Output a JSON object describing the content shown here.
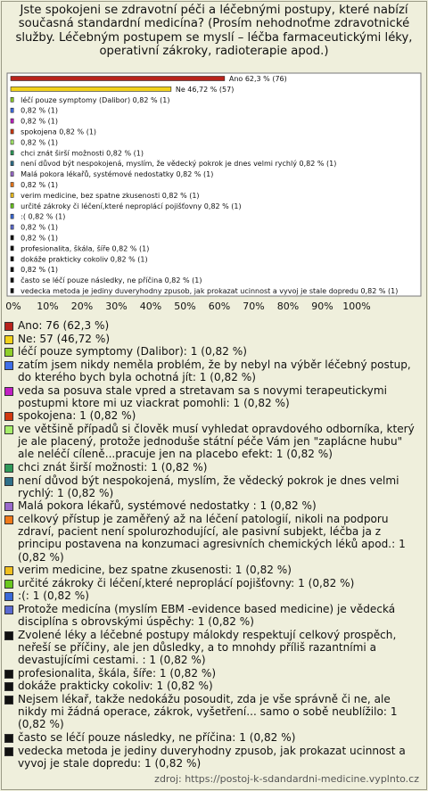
{
  "chart_data": {
    "type": "bar",
    "orientation": "horizontal",
    "title": "Jste spokojeni se zdravotní péči a léčebnými postupy, které nabízí současná standardní medicína? (Prosím nehodnoťme zdravotnické služby. Léčebným postupem se myslí – léčba farmaceutickými léky, operativní zákroky, radioterapie apod.)",
    "values": [
      62.3,
      46.72,
      0.82,
      0.82,
      0.82,
      0.82,
      0.82,
      0.82,
      0.82,
      0.82,
      0.82,
      0.82,
      0.82,
      0.82,
      0.82,
      0.82,
      0.82,
      0.82,
      0.82,
      0.82,
      0.82
    ],
    "value_labels": [
      "Ano 62,3 % (76)",
      "Ne 46,72 % (57)",
      "léčí pouze symptomy (Dalibor) 0,82 % (1)",
      "0,82 % (1)",
      "0,82 % (1)",
      "spokojena 0,82 % (1)",
      "0,82 % (1)",
      "chci znát širší možnosti 0,82 % (1)",
      "není důvod být nespokojená, myslím, že vědecký pokrok je dnes velmi rychlý 0,82 % (1)",
      "Malá pokora lékařů, systémové nedostatky  0,82 % (1)",
      "0,82 % (1)",
      "verim medicine, bez spatne zkusenosti 0,82 % (1)",
      "určité zákroky či léčení,které neproplácí pojišťovny 0,82 % (1)",
      ":( 0,82 % (1)",
      "0,82 % (1)",
      "0,82 % (1)",
      "profesionalita, škála, šíře 0,82 % (1)",
      "dokáže prakticky cokoliv 0,82 % (1)",
      "0,82 % (1)",
      "často se léčí pouze následky, ne příčina 0,82 % (1)",
      "vedecka metoda je jediny duveryhodny zpusob, jak prokazat ucinnost a vyvoj je stale dopredu 0,82 % (1)"
    ],
    "colors": [
      "#b8231c",
      "#f2d21b",
      "#8fcf2a",
      "#3f6fe8",
      "#c11fc4",
      "#d23a10",
      "#a6ee6a",
      "#2f9a5a",
      "#2f6f8a",
      "#9a6acb",
      "#f07a1a",
      "#f0c020",
      "#6ac81e",
      "#3a6ad8",
      "#5a6ad0",
      "#111111",
      "#111111",
      "#111111",
      "#111111",
      "#111111",
      "#111111"
    ],
    "legend_labels": [
      "Ano: 76 (62,3 %)",
      "Ne: 57 (46,72 %)",
      "léčí pouze symptomy (Dalibor): 1 (0,82 %)",
      "zatím jsem nikdy neměla problém, že by nebyl na výběr léčebný postup, do kterého bych byla ochotná jít: 1 (0,82 %)",
      "veda sa posuva stale vpred a stretavam sa s novymi terapeutickymi postupmi ktore mi uz viackrat pomohli: 1 (0,82 %)",
      "spokojena: 1 (0,82 %)",
      "ve většině případů si člověk musí vyhledat opravdového odborníka, který je ale placený, protože jednoduše státní péče Vám jen \"zaplácne hubu\" ale neléčí cíleně...pracuje jen na placebo efekt: 1 (0,82 %)",
      "chci znát širší možnosti: 1 (0,82 %)",
      "není důvod být nespokojená, myslím, že vědecký pokrok je dnes velmi rychlý: 1 (0,82 %)",
      "Malá pokora lékařů, systémové nedostatky : 1 (0,82 %)",
      "celkový přístup je zaměřený až na léčení patologií, nikoli na podporu zdraví, pacient není spolurozhodující, ale pasivní subjekt, léčba ja z principu postavena na konzumaci agresivních chemických léků apod.: 1 (0,82 %)",
      "verim medicine, bez spatne zkusenosti: 1 (0,82 %)",
      "určité zákroky či léčení,které neproplácí pojišťovny: 1 (0,82 %)",
      ":(: 1 (0,82 %)",
      "Protože medicína (myslím EBM -evidence based medicine) je vědecká disciplína s obrovskými úspěchy: 1 (0,82 %)",
      "Zvolené léky a léčebné postupy málokdy respektují celkový prospěch, neřeší se příčiny, ale jen důsledky, a to mnohdy příliš razantními a devastujícími cestami. : 1 (0,82 %)",
      "profesionalita, škála, šíře: 1 (0,82 %)",
      "dokáže prakticky cokoliv: 1 (0,82 %)",
      "Nejsem lékař, takže nedokážu posoudit, zda je vše správně či ne, ale nikdy mi žádná operace, zákrok, vyšetření... samo o sobě neublížilo: 1 (0,82 %)",
      "často se léčí pouze následky, ne příčina: 1 (0,82 %)",
      "vedecka metoda je jediny duveryhodny zpusob, jak prokazat ucinnost a vyvoj je stale dopredu: 1 (0,82 %)"
    ],
    "xlim": [
      0,
      120
    ],
    "xticks": [
      {
        "value": 0,
        "label": "0%"
      },
      {
        "value": 10,
        "label": "10%"
      },
      {
        "value": 20,
        "label": "20%"
      },
      {
        "value": 30,
        "label": "30%"
      },
      {
        "value": 40,
        "label": "40%"
      },
      {
        "value": 50,
        "label": "50%"
      },
      {
        "value": 60,
        "label": "60%"
      },
      {
        "value": 70,
        "label": "70%"
      },
      {
        "value": 80,
        "label": "80%"
      },
      {
        "value": 90,
        "label": "90%"
      },
      {
        "value": 100,
        "label": "100%"
      }
    ],
    "grid": false,
    "source": "zdroj: https://postoj-k-sdandardni-medicine.vyplnto.cz"
  }
}
